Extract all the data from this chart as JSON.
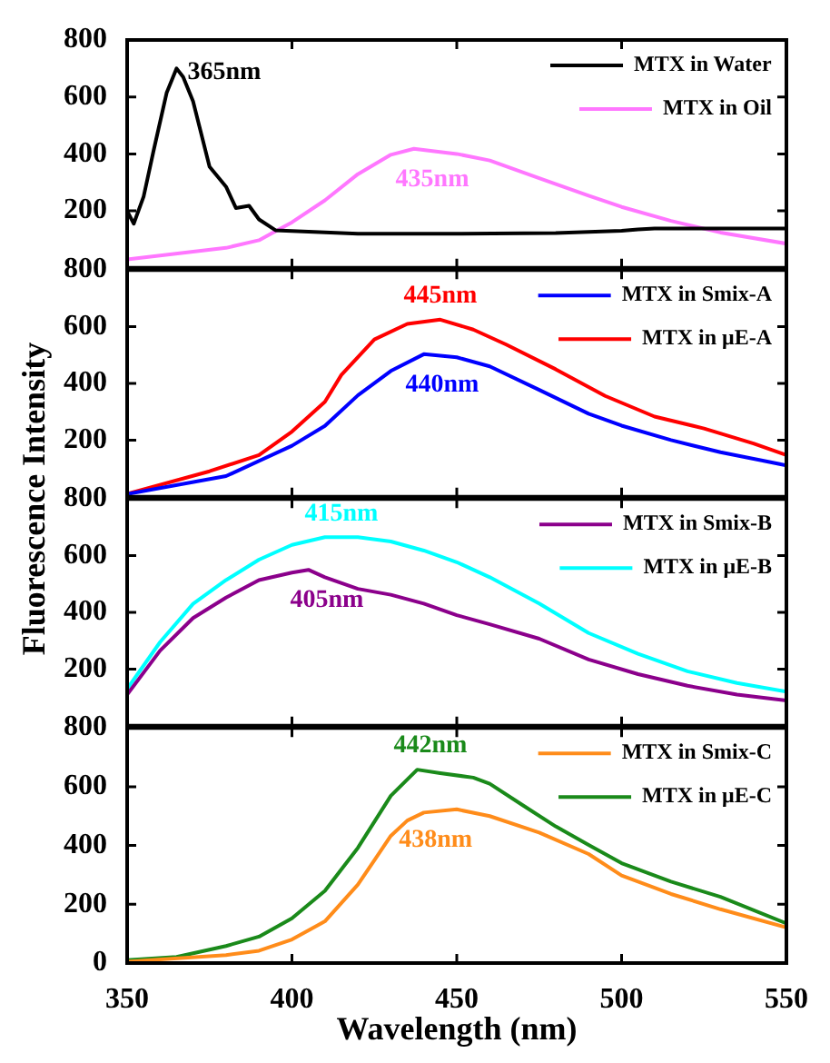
{
  "chart_data": [
    {
      "type": "line",
      "x": [
        350,
        352,
        355,
        358,
        362,
        365,
        367,
        370,
        375,
        380,
        383,
        387,
        390,
        395,
        420,
        450,
        480,
        500,
        505,
        510,
        550
      ],
      "xlim": [
        350,
        550
      ],
      "xticks": [
        350,
        400,
        450,
        500,
        550
      ],
      "ylim": [
        0,
        800
      ],
      "yticks": [
        200,
        400,
        600,
        800
      ],
      "tick_labels": "y",
      "grid": false,
      "legend": "top right",
      "marker": "none",
      "series": [
        {
          "name": "MTX in Water",
          "color": "#000000",
          "values": [
            200,
            155,
            250,
            410,
            615,
            700,
            670,
            585,
            355,
            285,
            210,
            218,
            170,
            132,
            120,
            120,
            122,
            130,
            135,
            138,
            138
          ]
        },
        {
          "name": "MTX in Oil",
          "color": "#ff77ff",
          "x": [
            350,
            380,
            390,
            400,
            410,
            420,
            430,
            437,
            450,
            460,
            475,
            490,
            500,
            515,
            530,
            550
          ],
          "values": [
            30,
            70,
            97,
            160,
            237,
            329,
            397,
            418,
            400,
            377,
            315,
            253,
            214,
            165,
            124,
            85
          ]
        }
      ],
      "annotations": [
        {
          "text": "365nm",
          "x": 365,
          "y": 700
        },
        {
          "text": "435nm",
          "x": 437,
          "y": 418
        }
      ]
    },
    {
      "type": "line",
      "xlim": [
        350,
        550
      ],
      "xticks": [
        350,
        400,
        450,
        500,
        550
      ],
      "ylim": [
        0,
        800
      ],
      "yticks": [
        200,
        400,
        600,
        800
      ],
      "tick_labels": "y",
      "grid": false,
      "legend": "top right",
      "marker": "none",
      "ylabel": "Fluorescence Intensity",
      "series": [
        {
          "name": "MTX in Smix-A",
          "color": "#0000ff",
          "x": [
            350,
            380,
            400,
            410,
            420,
            430,
            440,
            450,
            460,
            475,
            490,
            500,
            515,
            530,
            550
          ],
          "values": [
            10,
            73,
            180,
            250,
            358,
            444,
            503,
            492,
            460,
            377,
            293,
            251,
            200,
            157,
            111
          ]
        },
        {
          "name": "MTX in μE-A",
          "color": "#ff0000",
          "x": [
            350,
            375,
            390,
            400,
            410,
            415,
            425,
            435,
            445,
            455,
            465,
            480,
            495,
            510,
            525,
            540,
            550
          ],
          "values": [
            10,
            90,
            147,
            230,
            335,
            430,
            555,
            610,
            625,
            590,
            537,
            450,
            356,
            283,
            241,
            188,
            147
          ]
        }
      ],
      "annotations": [
        {
          "text": "440nm",
          "x": 440,
          "y": 503
        },
        {
          "text": "445nm",
          "x": 445,
          "y": 625
        }
      ]
    },
    {
      "type": "line",
      "x": [
        350,
        360,
        370,
        380,
        390,
        400,
        405,
        410,
        420,
        430,
        440,
        450,
        460,
        475,
        490,
        505,
        520,
        535,
        550
      ],
      "xlim": [
        350,
        550
      ],
      "xticks": [
        350,
        400,
        450,
        500,
        550
      ],
      "ylim": [
        0,
        800
      ],
      "yticks": [
        200,
        400,
        600,
        800
      ],
      "tick_labels": "y",
      "grid": false,
      "legend": "top right",
      "marker": "none",
      "series": [
        {
          "name": "MTX in Smix-B",
          "color": "#8b008b",
          "values": [
            110,
            265,
            380,
            452,
            514,
            540,
            550,
            524,
            483,
            462,
            431,
            390,
            358,
            307,
            234,
            182,
            141,
            110,
            89
          ]
        },
        {
          "name": "MTX in μE-B",
          "color": "#00ffff",
          "x": [
            350,
            360,
            370,
            380,
            390,
            400,
            410,
            420,
            430,
            440,
            450,
            460,
            475,
            490,
            505,
            520,
            535,
            550
          ],
          "values": [
            130,
            295,
            430,
            514,
            586,
            638,
            665,
            665,
            650,
            618,
            577,
            524,
            431,
            327,
            254,
            192,
            151,
            120
          ]
        }
      ],
      "annotations": [
        {
          "text": "405nm",
          "x": 405,
          "y": 550
        },
        {
          "text": "415nm",
          "x": 415,
          "y": 665
        }
      ]
    },
    {
      "type": "line",
      "x": [
        350,
        380,
        390,
        400,
        410,
        420,
        425,
        430,
        435,
        440,
        450,
        460,
        475,
        490,
        500,
        515,
        530,
        550
      ],
      "xlim": [
        350,
        550
      ],
      "xticks": [
        350,
        400,
        450,
        500,
        550
      ],
      "ylim": [
        0,
        800
      ],
      "yticks": [
        0,
        200,
        400,
        600,
        800
      ],
      "grid": false,
      "legend": "top right",
      "marker": "none",
      "xlabel": "Wavelength (nm)",
      "series": [
        {
          "name": "MTX in Smix-C",
          "color": "#ff8c1a",
          "values": [
            5,
            27,
            42,
            80,
            142,
            267,
            350,
            433,
            485,
            512,
            523,
            500,
            444,
            371,
            298,
            235,
            183,
            121
          ]
        },
        {
          "name": "MTX in μE-C",
          "color": "#1a8a1a",
          "x": [
            350,
            365,
            380,
            390,
            400,
            410,
            420,
            430,
            438,
            445,
            455,
            460,
            470,
            480,
            490,
            500,
            515,
            530,
            550
          ],
          "values": [
            10,
            21,
            58,
            90,
            152,
            246,
            392,
            569,
            658,
            646,
            631,
            610,
            537,
            465,
            402,
            340,
            277,
            225,
            135
          ]
        }
      ],
      "annotations": [
        {
          "text": "438nm",
          "x": 438,
          "y": 523
        },
        {
          "text": "442nm",
          "x": 442,
          "y": 658
        }
      ]
    }
  ]
}
